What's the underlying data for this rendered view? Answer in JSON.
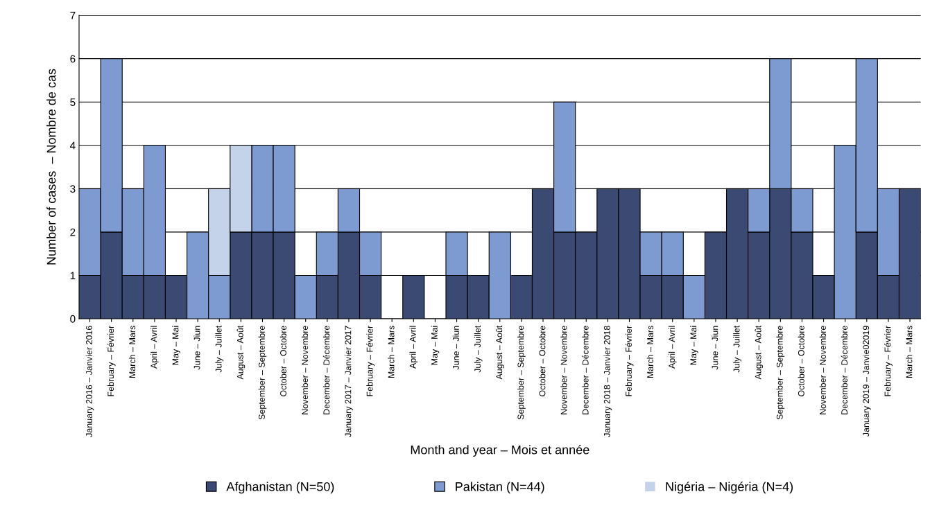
{
  "chart_data": {
    "type": "bar",
    "stacked": true,
    "xlabel": "Month and year – Mois et année",
    "ylabel": "Number of cases  – Nombre de cas",
    "categories": [
      "January 2016 – Janvier 2016",
      "February – Février",
      "March – Mars",
      "April – Avril",
      "May – Mai",
      "June – Jiun",
      "July – Juillet",
      "August – Août",
      "September – Septembre",
      "October – Octobre",
      "November – Novembre",
      "December – Décembre",
      "January 2017 – Janvier 2017",
      "February – Février",
      "March – Mars",
      "April – Avril",
      "May – Mai",
      "June – Jiun",
      "July – Juillet",
      "August – Août",
      "September – Septembre",
      "October – Octobre",
      "November – Novembre",
      "December – Décembre",
      "January 2018 – Janvier 2018",
      "February – Février",
      "March – Mars",
      "April – Avril",
      "May – Mai",
      "June – Jiun",
      "July – Juillet",
      "August – Août",
      "September – Septembre",
      "October – Octobre",
      "November – Novembre",
      "December – Décembre",
      "January 2019 – Janvie02019",
      "February – Février",
      "March – Mars"
    ],
    "series": [
      {
        "name": "Afghanistan (N=50)",
        "color": "#3a4a72",
        "values": [
          1,
          2,
          1,
          1,
          1,
          0,
          0,
          2,
          2,
          2,
          0,
          1,
          2,
          1,
          0,
          1,
          0,
          1,
          1,
          0,
          1,
          3,
          2,
          2,
          3,
          3,
          1,
          1,
          0,
          2,
          3,
          2,
          3,
          2,
          1,
          0,
          2,
          1,
          3
        ]
      },
      {
        "name": "Pakistan (N=44)",
        "color": "#7d9bd0",
        "values": [
          2,
          4,
          2,
          3,
          0,
          2,
          1,
          0,
          2,
          2,
          1,
          1,
          1,
          1,
          0,
          0,
          0,
          1,
          0,
          2,
          0,
          0,
          3,
          0,
          0,
          0,
          1,
          1,
          1,
          0,
          0,
          1,
          3,
          1,
          0,
          4,
          4,
          2,
          0
        ]
      },
      {
        "name": "Nigéria – Nigéria (N=4)",
        "color": "#c5d3ea",
        "values": [
          0,
          0,
          0,
          0,
          0,
          0,
          2,
          2,
          0,
          0,
          0,
          0,
          0,
          0,
          0,
          0,
          0,
          0,
          0,
          0,
          0,
          0,
          0,
          0,
          0,
          0,
          0,
          0,
          0,
          0,
          0,
          0,
          0,
          0,
          0,
          0,
          0,
          0,
          0
        ]
      }
    ],
    "ylim": [
      0,
      7
    ],
    "yticks": [
      0,
      1,
      2,
      3,
      4,
      5,
      6,
      7
    ],
    "grid": "y",
    "legend": "bottom"
  }
}
